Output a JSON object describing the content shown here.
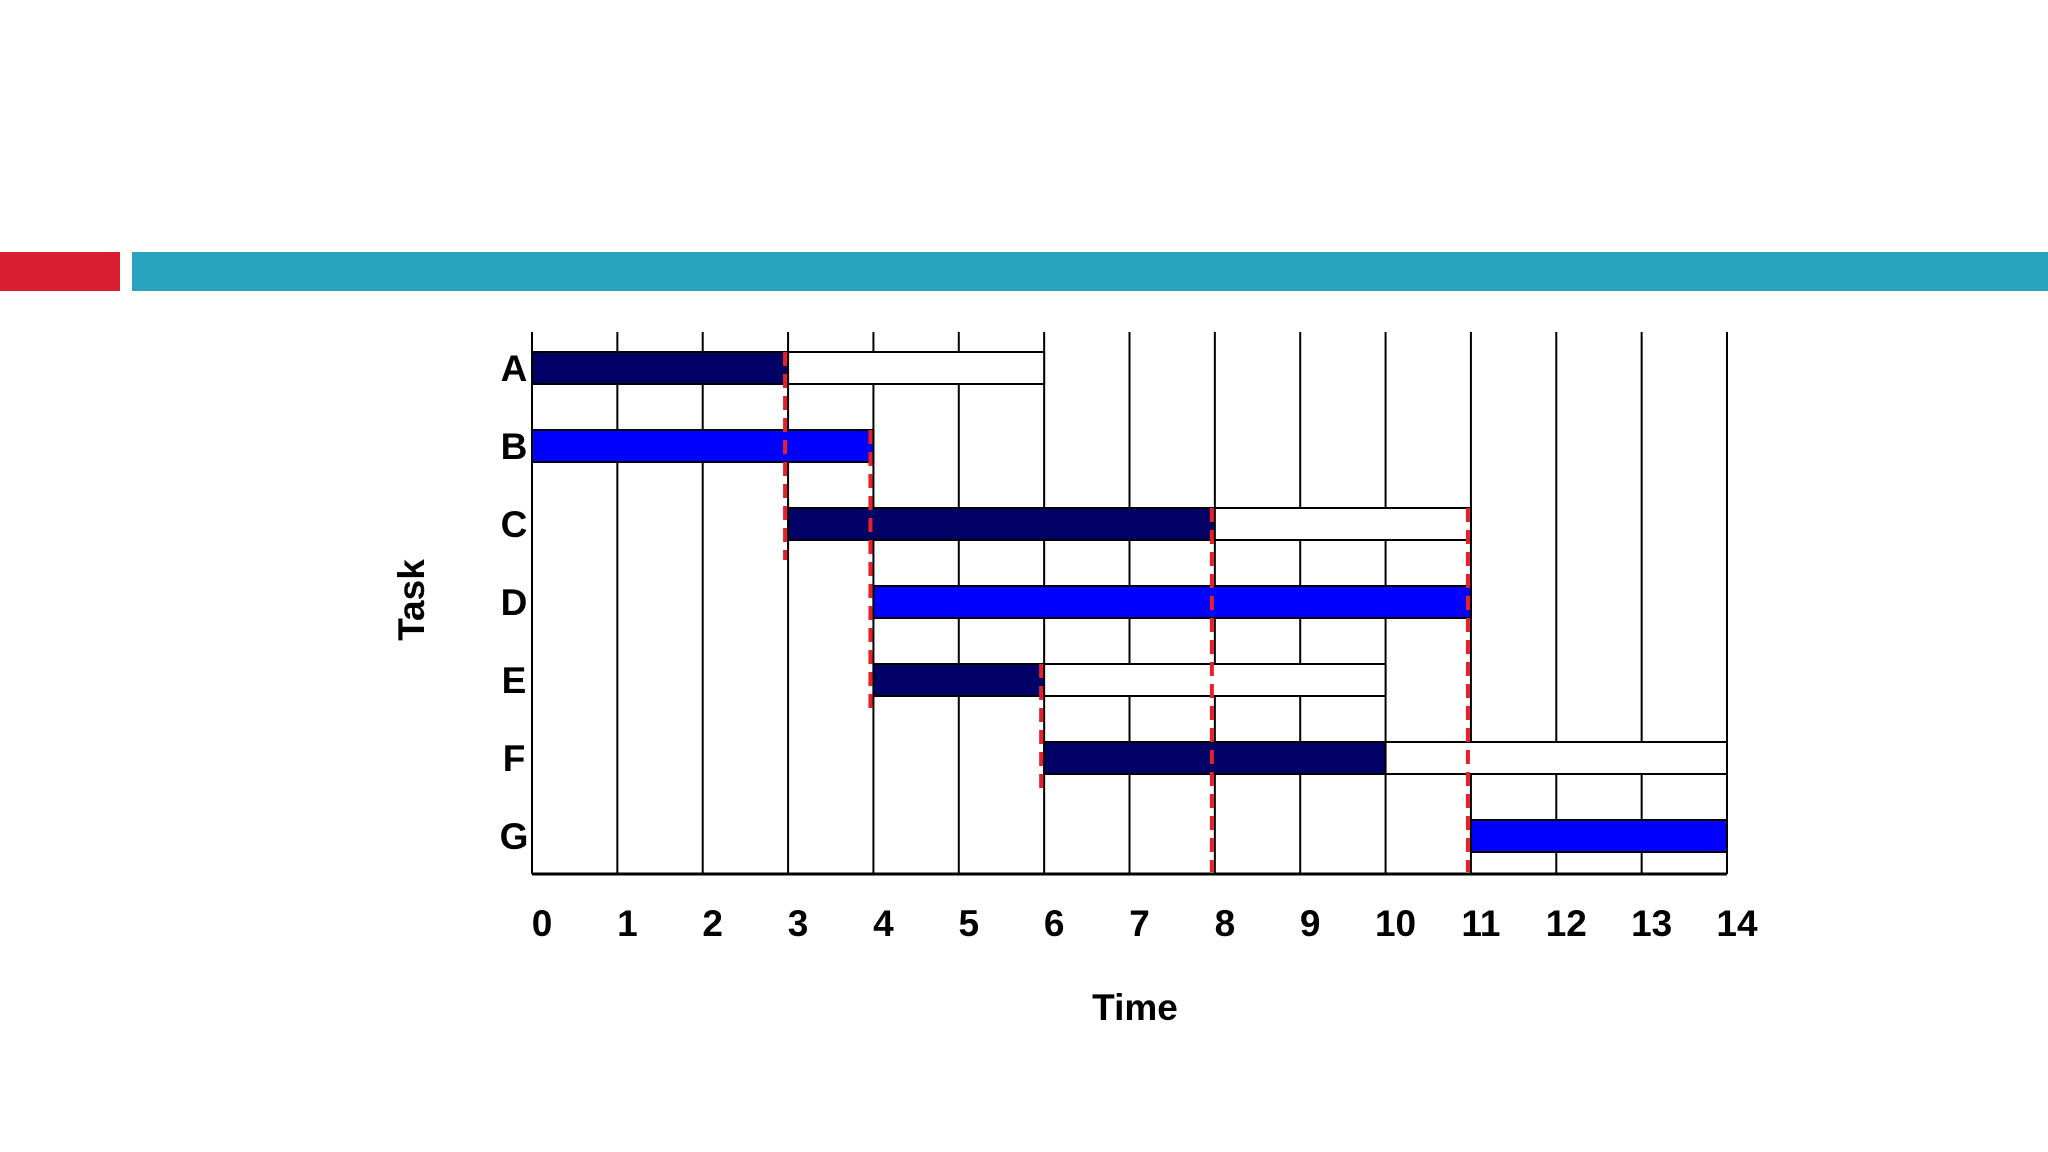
{
  "slide": {
    "accent_colors": {
      "red": "#d91f2f",
      "teal": "#2aa3bf"
    }
  },
  "colors": {
    "critical": "#0000ff",
    "active": "#000066",
    "slack": "#ffffff",
    "milestone_line": "#e8202a",
    "grid": "#000000"
  },
  "chart_data": {
    "type": "gantt",
    "title": "",
    "xlabel": "Time",
    "ylabel": "Task",
    "xlim": [
      0,
      14
    ],
    "x_ticks": [
      "0",
      "1",
      "2",
      "3",
      "4",
      "5",
      "6",
      "7",
      "8",
      "9",
      "10",
      "11",
      "12",
      "13",
      "14"
    ],
    "grid": "vertical",
    "tasks": [
      {
        "name": "A",
        "start": 0,
        "duration": 3,
        "slack": 3,
        "critical": false
      },
      {
        "name": "B",
        "start": 0,
        "duration": 4,
        "slack": 0,
        "critical": true
      },
      {
        "name": "C",
        "start": 3,
        "duration": 5,
        "slack": 3,
        "critical": false
      },
      {
        "name": "D",
        "start": 4,
        "duration": 7,
        "slack": 0,
        "critical": true
      },
      {
        "name": "E",
        "start": 4,
        "duration": 2,
        "slack": 4,
        "critical": false
      },
      {
        "name": "F",
        "start": 6,
        "duration": 4,
        "slack": 4,
        "critical": false
      },
      {
        "name": "G",
        "start": 11,
        "duration": 3,
        "slack": 0,
        "critical": true
      }
    ],
    "dashed_lines": [
      {
        "x": 3,
        "from_task": "A",
        "to_task": "C"
      },
      {
        "x": 4,
        "from_task": "B",
        "to_task": "E"
      },
      {
        "x": 6,
        "from_task": "E",
        "to_task": "F"
      },
      {
        "x": 8,
        "from_task": "C",
        "to_task": "G"
      },
      {
        "x": 11,
        "from_task": "C",
        "to_task": "G"
      }
    ]
  }
}
